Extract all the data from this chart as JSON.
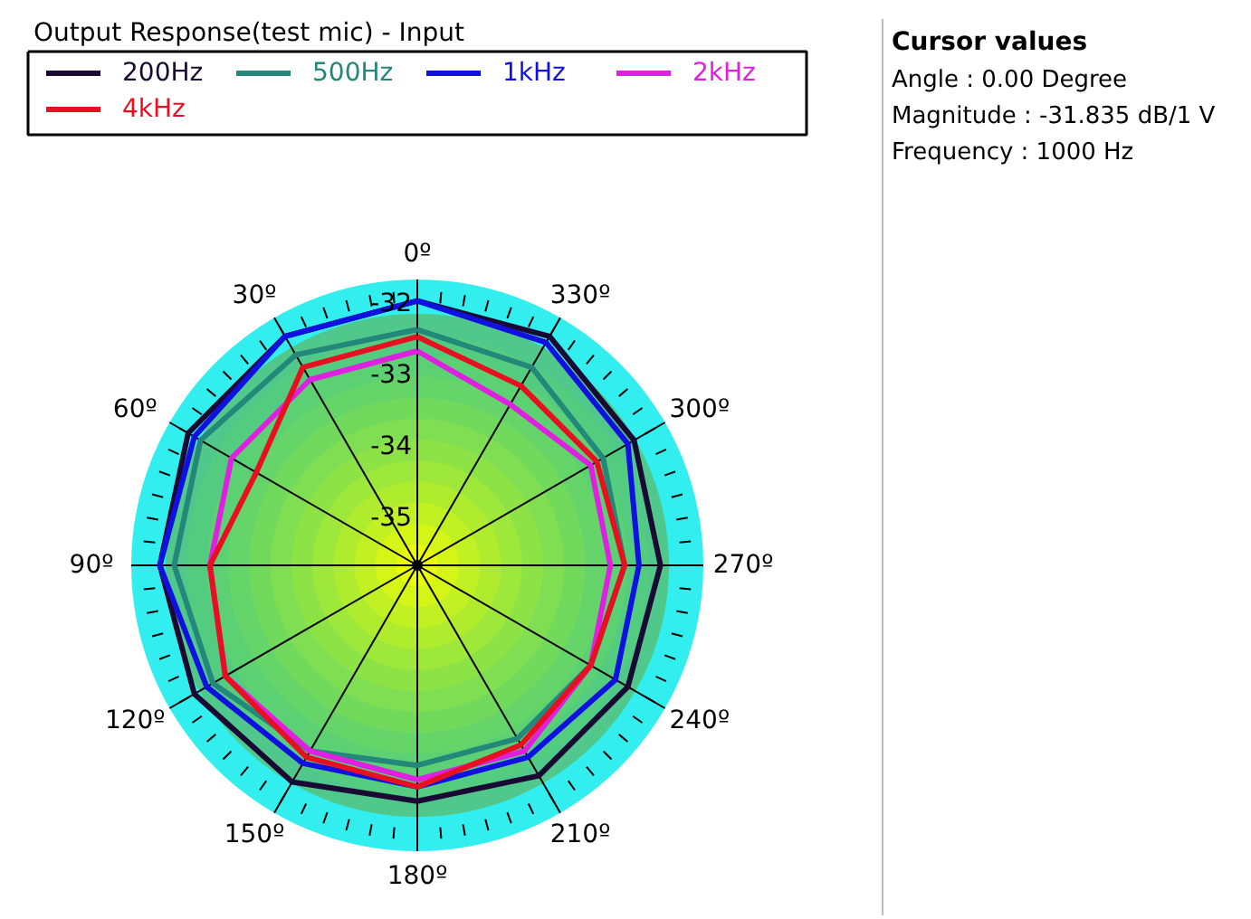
{
  "chart_data": [
    {
      "type": "radar",
      "title": "Output Response(test mic) - Input",
      "categories": [
        "0º",
        "330º",
        "300º",
        "270º",
        "240º",
        "210º",
        "180º",
        "150º",
        "120º",
        "90º",
        "60º",
        "30º"
      ],
      "series": [
        {
          "name": "200Hz",
          "color": "#1a0a33",
          "values": [
            -32.0,
            -32.0,
            -32.2,
            -32.3,
            -32.3,
            -32.3,
            -32.4,
            -32.2,
            -32.1,
            -32.1,
            -32.0,
            -32.0
          ]
        },
        {
          "name": "500Hz",
          "color": "#23877a",
          "values": [
            -32.4,
            -32.5,
            -32.7,
            -32.8,
            -32.9,
            -32.9,
            -32.9,
            -32.7,
            -32.4,
            -32.3,
            -32.2,
            -32.3
          ]
        },
        {
          "name": "1kHz",
          "color": "#1010e0",
          "values": [
            -32.0,
            -32.1,
            -32.3,
            -32.6,
            -32.5,
            -32.6,
            -32.6,
            -32.5,
            -32.3,
            -32.1,
            -32.1,
            -32.0
          ]
        },
        {
          "name": "2kHz",
          "color": "#e020e0",
          "values": [
            -32.7,
            -33.1,
            -32.9,
            -33.0,
            -32.9,
            -32.7,
            -32.7,
            -32.7,
            -32.6,
            -32.8,
            -32.7,
            -32.7
          ]
        },
        {
          "name": "4kHz",
          "color": "#e81020",
          "values": [
            -32.5,
            -32.8,
            -32.8,
            -32.8,
            -32.9,
            -32.8,
            -32.6,
            -32.6,
            -32.6,
            -32.8,
            -33.1,
            -32.5
          ]
        }
      ],
      "ylim": [
        -35.7,
        -31.7
      ],
      "yticks": [
        -35,
        -34,
        -33,
        -32
      ],
      "grid": true,
      "legend": "top"
    },
    {
      "type": "other",
      "title": "Cursor values",
      "annotations": [
        "Angle :  0.00 Degree",
        "Magnitude : -31.835 dB/1 V",
        "Frequency : 1000 Hz"
      ]
    }
  ]
}
